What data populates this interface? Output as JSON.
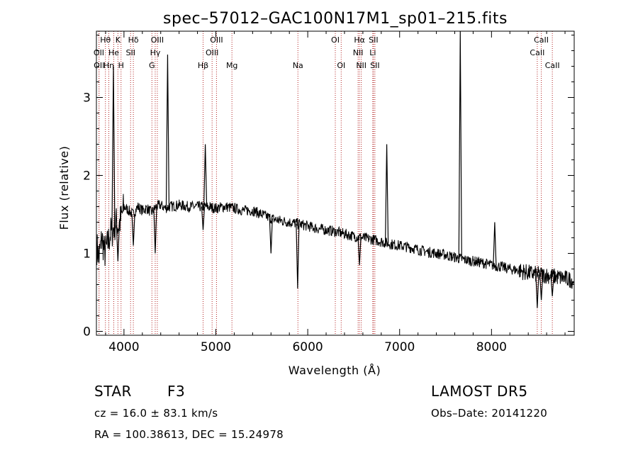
{
  "chart_data": {
    "type": "line",
    "title": "spec–57012–GAC100N17M1_sp01–215.fits",
    "xlabel": "Wavelength (Å)",
    "ylabel": "Flux (relative)",
    "xlim": [
      3700,
      8900
    ],
    "ylim": [
      -0.05,
      3.85
    ],
    "x_ticks": [
      4000,
      5000,
      6000,
      7000,
      8000
    ],
    "y_ticks": [
      0,
      1,
      2,
      3
    ],
    "x_tick_labels": [
      "4000",
      "5000",
      "6000",
      "7000",
      "8000"
    ],
    "y_tick_labels": [
      "0",
      "1",
      "2",
      "3"
    ],
    "grid": false,
    "legend": "none",
    "series_color": "#000000",
    "line_color": "#b22222",
    "spectrum": {
      "x": [
        3700,
        3730,
        3760,
        3790,
        3820,
        3850,
        3880,
        3910,
        3940,
        3970,
        4000,
        4050,
        4100,
        4150,
        4200,
        4250,
        4300,
        4350,
        4400,
        4450,
        4500,
        4600,
        4700,
        4800,
        4900,
        5000,
        5100,
        5200,
        5300,
        5400,
        5500,
        5600,
        5700,
        5800,
        5900,
        6000,
        6100,
        6200,
        6300,
        6400,
        6500,
        6600,
        6700,
        6800,
        6900,
        7000,
        7100,
        7200,
        7300,
        7400,
        7500,
        7600,
        7700,
        7800,
        7900,
        8000,
        8100,
        8200,
        8300,
        8400,
        8500,
        8600,
        8700,
        8800,
        8900
      ],
      "y": [
        1.1,
        0.95,
        1.2,
        1.0,
        1.1,
        1.25,
        1.3,
        1.4,
        1.35,
        1.45,
        1.6,
        1.55,
        1.5,
        1.6,
        1.55,
        1.58,
        1.52,
        1.6,
        1.62,
        1.58,
        1.6,
        1.62,
        1.6,
        1.6,
        1.6,
        1.58,
        1.6,
        1.58,
        1.55,
        1.55,
        1.5,
        1.45,
        1.42,
        1.4,
        1.38,
        1.35,
        1.32,
        1.3,
        1.28,
        1.25,
        1.22,
        1.2,
        1.18,
        1.15,
        1.12,
        1.1,
        1.08,
        1.05,
        1.02,
        1.0,
        0.98,
        0.95,
        0.92,
        0.9,
        0.88,
        0.85,
        0.83,
        0.8,
        0.78,
        0.75,
        0.73,
        0.72,
        0.7,
        0.68,
        0.65
      ]
    },
    "spikes": [
      {
        "x": 3885,
        "y": 3.4
      },
      {
        "x": 4475,
        "y": 3.55
      },
      {
        "x": 4885,
        "y": 2.4
      },
      {
        "x": 6860,
        "y": 2.4
      },
      {
        "x": 7660,
        "y": 3.85
      },
      {
        "x": 8035,
        "y": 1.4
      }
    ],
    "dips": [
      {
        "x": 3934,
        "y": 0.9
      },
      {
        "x": 4102,
        "y": 1.1
      },
      {
        "x": 4340,
        "y": 1.0
      },
      {
        "x": 4861,
        "y": 1.3
      },
      {
        "x": 5600,
        "y": 1.0
      },
      {
        "x": 5890,
        "y": 0.55
      },
      {
        "x": 6563,
        "y": 0.85
      },
      {
        "x": 8498,
        "y": 0.3
      },
      {
        "x": 8542,
        "y": 0.4
      },
      {
        "x": 8662,
        "y": 0.45
      }
    ],
    "lines": [
      {
        "label": "Hθ",
        "x": 3798,
        "row": 1
      },
      {
        "label": "K",
        "x": 3934,
        "row": 1
      },
      {
        "label": "Hδ",
        "x": 4102,
        "row": 1
      },
      {
        "label": "OIII",
        "x": 4363,
        "row": 1
      },
      {
        "label": "OIII",
        "x": 5007,
        "row": 1
      },
      {
        "label": "OI",
        "x": 6300,
        "row": 1
      },
      {
        "label": "Hα",
        "x": 6563,
        "row": 1
      },
      {
        "label": "SII",
        "x": 6716,
        "row": 1
      },
      {
        "label": "CaII",
        "x": 8542,
        "row": 1
      },
      {
        "label": "OII",
        "x": 3727,
        "row": 2
      },
      {
        "label": "He",
        "x": 3889,
        "row": 2
      },
      {
        "label": "SII",
        "x": 4072,
        "row": 2
      },
      {
        "label": "Hγ",
        "x": 4340,
        "row": 2
      },
      {
        "label": "OIII",
        "x": 4959,
        "row": 2
      },
      {
        "label": "NII",
        "x": 6548,
        "row": 2
      },
      {
        "label": "Li",
        "x": 6708,
        "row": 2
      },
      {
        "label": "CaII",
        "x": 8498,
        "row": 2
      },
      {
        "label": "OII",
        "x": 3729,
        "row": 3
      },
      {
        "label": "Hη",
        "x": 3835,
        "row": 3
      },
      {
        "label": "H",
        "x": 3968,
        "row": 3
      },
      {
        "label": "G",
        "x": 4304,
        "row": 3
      },
      {
        "label": "Hβ",
        "x": 4861,
        "row": 3
      },
      {
        "label": "Mg",
        "x": 5175,
        "row": 3
      },
      {
        "label": "Na",
        "x": 5893,
        "row": 3
      },
      {
        "label": "OI",
        "x": 6364,
        "row": 3
      },
      {
        "label": "NII",
        "x": 6583,
        "row": 3
      },
      {
        "label": "SII",
        "x": 6731,
        "row": 3
      },
      {
        "label": "CaII",
        "x": 8662,
        "row": 3
      }
    ]
  },
  "info": {
    "object_class": "STAR",
    "subclass": "F3",
    "survey": "LAMOST DR5",
    "cz": "cz = 16.0 ± 83.1 km/s",
    "obs_date": "Obs–Date: 20141220",
    "coords": "RA = 100.38613, DEC =  15.24978"
  }
}
